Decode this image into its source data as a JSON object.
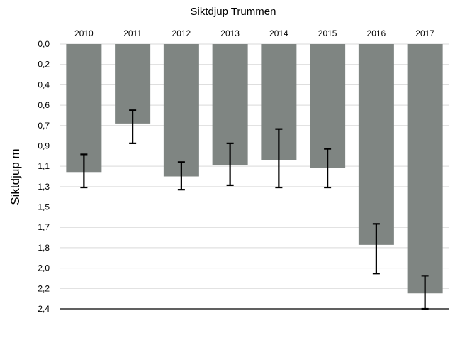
{
  "chart_data": {
    "type": "bar",
    "title": "Siktdjup Trummen",
    "ylabel": "Siktdjup m",
    "xlabel": "",
    "categories": [
      "2010",
      "2011",
      "2012",
      "2013",
      "2014",
      "2015",
      "2016",
      "2017"
    ],
    "values": [
      1.16,
      0.72,
      1.2,
      1.1,
      1.05,
      1.12,
      1.82,
      2.26
    ],
    "error_low": [
      1.0,
      0.6,
      1.07,
      0.9,
      0.77,
      0.95,
      1.63,
      2.1
    ],
    "error_high": [
      1.3,
      0.9,
      1.32,
      1.28,
      1.3,
      1.3,
      2.08,
      2.4
    ],
    "y_ticks": [
      "0,0",
      "0,2",
      "0,4",
      "0,6",
      "0,7",
      "0,9",
      "1,1",
      "1,3",
      "1,5",
      "1,7",
      "1,8",
      "2,0",
      "2,2",
      "2,4"
    ],
    "ylim": [
      0,
      2.4
    ],
    "y_inverted": true,
    "x_axis_position": "top",
    "grid": true,
    "legend": "none",
    "colors": {
      "bar": "#7f8582",
      "error_bar": "#000000",
      "grid": "#d9d9d9",
      "axis": "#000000"
    }
  }
}
